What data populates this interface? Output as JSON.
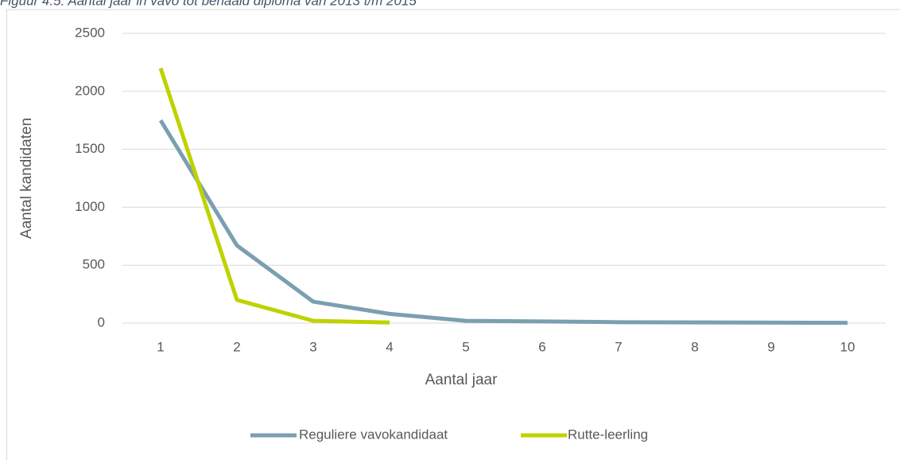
{
  "chart_data": {
    "type": "line",
    "title": "Figuur 4.5: Aantal jaar in vavo tot behaald diploma van 2013 t/m 2015",
    "x_label": "Aantal jaar",
    "y_label": "Aantal kandidaten",
    "categories": [
      "1",
      "2",
      "3",
      "4",
      "5",
      "6",
      "7",
      "8",
      "9",
      "10"
    ],
    "series": [
      {
        "name": "Reguliere vavokandidaat",
        "color": "#7a9fb1",
        "values": [
          1750,
          670,
          185,
          80,
          20,
          15,
          8,
          6,
          4,
          3
        ]
      },
      {
        "name": "Rutte-leerling",
        "color": "#bfd200",
        "values": [
          2200,
          200,
          20,
          5,
          null,
          null,
          null,
          null,
          null,
          null
        ]
      }
    ],
    "ylim": [
      0,
      2500
    ],
    "yticks": [
      0,
      500,
      1000,
      1500,
      2000,
      2500
    ],
    "grid": true,
    "legend": "bottom"
  }
}
